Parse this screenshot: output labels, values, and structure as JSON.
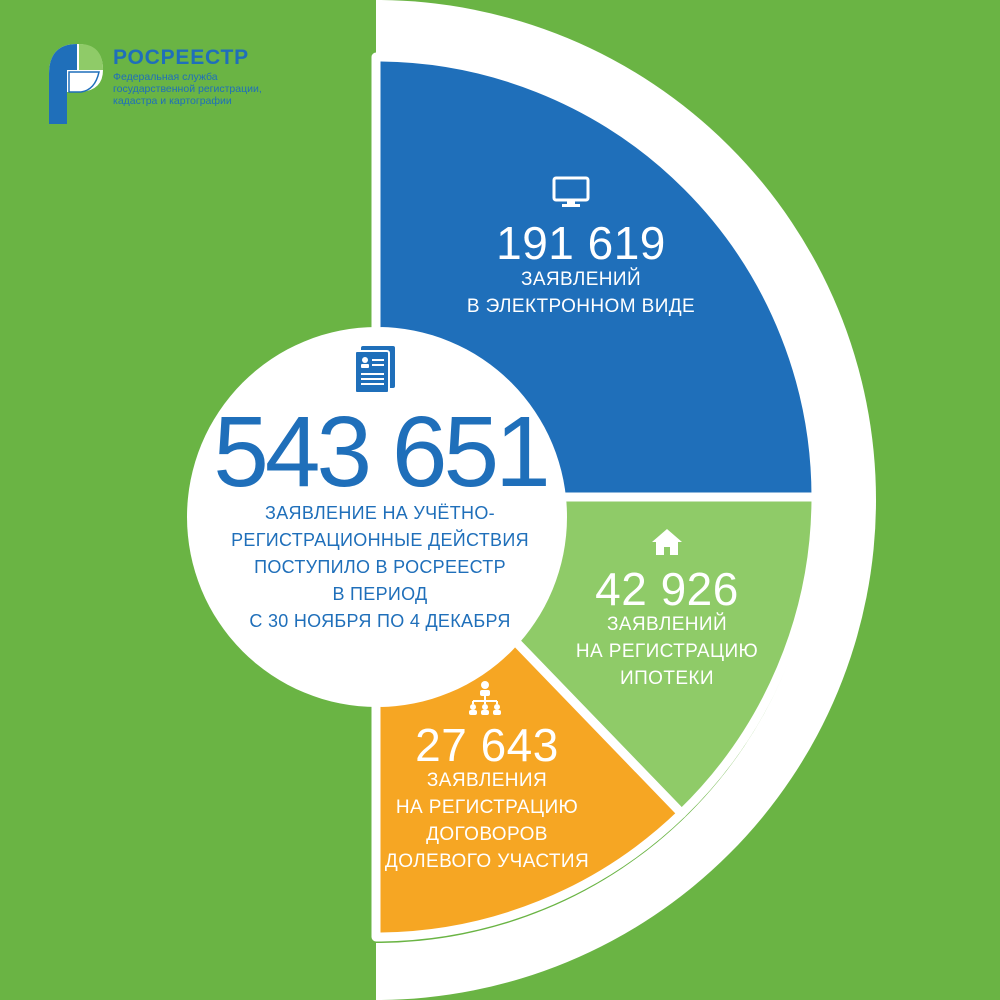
{
  "colors": {
    "background": "#6ab444",
    "ring": "#ffffff",
    "electronic": "#1f6fba",
    "mortgage": "#8fcb68",
    "shared": "#f6a623",
    "text_dark": "#1f6fba"
  },
  "logo": {
    "name": "РОСРЕЕСТР",
    "subtitle_lines": [
      "Федеральная служба",
      "государственной регистрации,",
      "кадастра и картографии"
    ]
  },
  "total": {
    "value": "543 651",
    "icon": "document-icon",
    "label_lines": [
      "ЗАЯВЛЕНИЕ НА УЧЁТНО-",
      "РЕГИСТРАЦИОННЫЕ ДЕЙСТВИЯ",
      "ПОСТУПИЛО В РОСРЕЕСТР",
      "В ПЕРИОД",
      "С 30 НОЯБРЯ ПО 4 ДЕКАБРЯ"
    ]
  },
  "chart_data": {
    "type": "pie",
    "total": 543651,
    "segments": [
      {
        "key": "electronic",
        "value": 191619,
        "value_text": "191 619",
        "icon": "monitor-icon",
        "label_lines": [
          "ЗАЯВЛЕНИЙ",
          "В ЭЛЕКТРОННОМ ВИДЕ"
        ],
        "color": "#1f6fba"
      },
      {
        "key": "mortgage",
        "value": 42926,
        "value_text": "42 926",
        "icon": "house-icon",
        "label_lines": [
          "ЗАЯВЛЕНИЙ",
          "НА РЕГИСТРАЦИЮ",
          "ИПОТЕКИ"
        ],
        "color": "#8fcb68"
      },
      {
        "key": "shared",
        "value": 27643,
        "value_text": "27 643",
        "icon": "people-network-icon",
        "label_lines": [
          "ЗАЯВЛЕНИЯ",
          "НА РЕГИСТРАЦИЮ",
          "ДОГОВОРОВ",
          "ДОЛЕВОГО УЧАСТИЯ"
        ],
        "color": "#f6a623"
      }
    ]
  }
}
